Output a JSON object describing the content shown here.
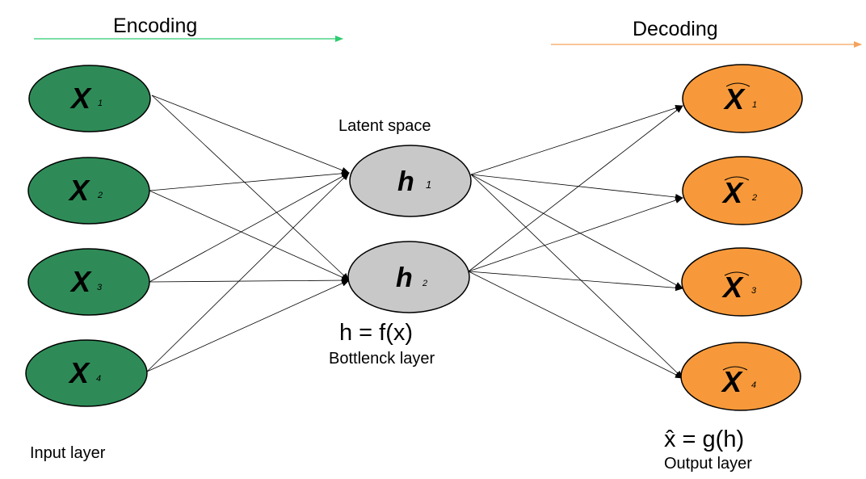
{
  "header": {
    "encoding": "Encoding",
    "decoding": "Decoding",
    "encoding_color": "#2ecc71",
    "decoding_color": "#f5a35b"
  },
  "input_layer": {
    "label": "Input layer",
    "color": "#2e8b57",
    "nodes": [
      {
        "var": "X",
        "sub": "1"
      },
      {
        "var": "X",
        "sub": "2"
      },
      {
        "var": "X",
        "sub": "3"
      },
      {
        "var": "X",
        "sub": "4"
      }
    ]
  },
  "bottleneck": {
    "title": "Latent space",
    "formula": "h = f(x)",
    "label": "Bottlenck layer",
    "color": "#c8c8c8",
    "nodes": [
      {
        "var": "h",
        "sub": "1"
      },
      {
        "var": "h",
        "sub": "2"
      }
    ]
  },
  "output_layer": {
    "formula": "x̂ = g(h)",
    "label": "Output layer",
    "color": "#f7993a",
    "nodes": [
      {
        "var": "X",
        "sub": "1"
      },
      {
        "var": "X",
        "sub": "2"
      },
      {
        "var": "X",
        "sub": "3"
      },
      {
        "var": "X",
        "sub": "4"
      }
    ]
  }
}
